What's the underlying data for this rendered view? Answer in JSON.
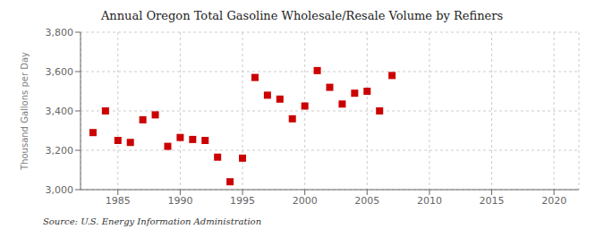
{
  "chart_data": {
    "type": "scatter",
    "title": "Annual Oregon Total Gasoline Wholesale/Resale Volume by Refiners",
    "ylabel": "Thousand Gallons per Day",
    "source": "Source: U.S. Energy Information Administration",
    "x": [
      1983,
      1984,
      1985,
      1986,
      1987,
      1988,
      1989,
      1990,
      1991,
      1992,
      1993,
      1994,
      1995,
      1996,
      1997,
      1998,
      1999,
      2000,
      2001,
      2002,
      2003,
      2004,
      2005,
      2006,
      2007
    ],
    "values": [
      3290,
      3400,
      3250,
      3240,
      3355,
      3380,
      3220,
      3265,
      3255,
      3250,
      3165,
      3040,
      3160,
      3570,
      3480,
      3460,
      3360,
      3425,
      3605,
      3520,
      3435,
      3490,
      3500,
      3400,
      3580
    ],
    "color": "#cc0000",
    "marker": "square",
    "xlim": [
      1982,
      2022
    ],
    "xticks": [
      1985,
      1990,
      1995,
      2000,
      2005,
      2010,
      2015,
      2020
    ],
    "ylim": [
      3000,
      3800
    ],
    "yticks": [
      {
        "value": 3000,
        "label": "3,000"
      },
      {
        "value": 3200,
        "label": "3,200"
      },
      {
        "value": 3400,
        "label": "3,400"
      },
      {
        "value": 3600,
        "label": "3,600"
      },
      {
        "value": 3800,
        "label": "3,800"
      }
    ],
    "grid": true
  }
}
